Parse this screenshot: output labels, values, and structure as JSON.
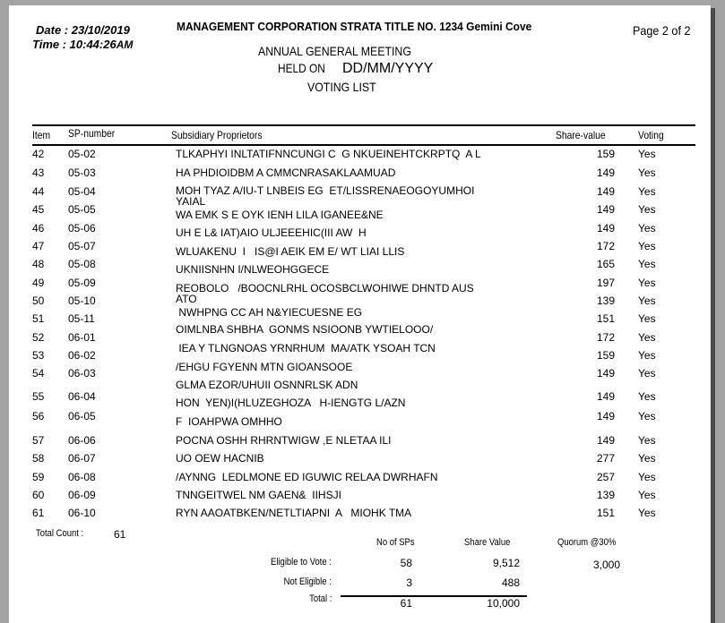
{
  "header": {
    "date_label": "Date : 23/10/2019",
    "time_label": "Time : 10:44:26",
    "time_suffix": "AM",
    "corp_title": "MANAGEMENT CORPORATION STRATA TITLE NO. 1234 Gemini Cove",
    "page_info": "Page 2 of 2",
    "meeting": "ANNUAL GENERAL MEETING",
    "held_on": "HELD ON",
    "held_date": "DD/MM/YYYY",
    "list_title": "VOTING LIST"
  },
  "table": {
    "columns": [
      "Item",
      "SP-number",
      "Subsidiary Proprietors",
      "Share-value",
      "Voting"
    ],
    "rows": [
      {
        "item": "42",
        "sp": "05-02",
        "name": "TLKAPHYI INLTATIFNNCUNGI C  G NKUEINEHTCKRPTQ  A L",
        "share": "159",
        "voting": "Yes"
      },
      {
        "item": "43",
        "sp": "05-03",
        "name": "HA PHDIOIDBM A CMMCNRASAKLAAMUAD",
        "share": "149",
        "voting": "Yes"
      },
      {
        "item": "44",
        "sp": "05-04",
        "name": "MOH TYAZ A/IU-T LNBEIS EG  ET/LISSRENAEOGOYUMHOI",
        "name2": "YAIAL",
        "share": "149",
        "voting": "Yes"
      },
      {
        "item": "45",
        "sp": "05-05",
        "name": "WA EMK S E OYK IENH LILA IGANEE&NE",
        "share": "149",
        "voting": "Yes"
      },
      {
        "item": "46",
        "sp": "05-06",
        "name": "UH E L& IAT)AIO ULJEEEHIC(III AW  H",
        "share": "149",
        "voting": "Yes"
      },
      {
        "item": "47",
        "sp": "05-07",
        "name": "WLUAKENU  I   IS@I AEIK EM E/ WT LIAI LLIS",
        "share": "172",
        "voting": "Yes"
      },
      {
        "item": "48",
        "sp": "05-08",
        "name": "UKNIISNHN I/NLWEOHGGECE",
        "share": "165",
        "voting": "Yes"
      },
      {
        "item": "49",
        "sp": "05-09",
        "name": "REOBOLO   /BOOCNLRHL OCOSBCLWOHIWE DHNTD AUS",
        "name2": "ATO",
        "share": "197",
        "voting": "Yes"
      },
      {
        "item": "50",
        "sp": "05-10",
        "name": " NWHPNG CC AH N&YIECUESNE EG",
        "share": "139",
        "voting": "Yes"
      },
      {
        "item": "51",
        "sp": "05-11",
        "name": "OIMLNBA SHBHA  GONMS NSIOONB YWTIELOOO/",
        "share": "151",
        "voting": "Yes"
      },
      {
        "item": "52",
        "sp": "06-01",
        "name": " IEA Y TLNGNOAS YRNRHUM  MA/ATK YSOAH TCN",
        "share": "172",
        "voting": "Yes"
      },
      {
        "item": "53",
        "sp": "06-02",
        "name": "/EHGU FGYENN MTN GIOANSOOE",
        "share": "159",
        "voting": "Yes"
      },
      {
        "item": "54",
        "sp": "06-03",
        "name": "GLMA EZOR/UHUII OSNNRLSK ADN",
        "share": "149",
        "voting": "Yes"
      },
      {
        "item": "55",
        "sp": "06-04",
        "name": "HON  YEN)I(HLUZEGHOZA   H-IENGTG L/AZN",
        "share": "149",
        "voting": "Yes"
      },
      {
        "item": "56",
        "sp": "06-05",
        "name": "F  IOAHPWA OMHHO",
        "share": "149",
        "voting": "Yes"
      },
      {
        "item": "57",
        "sp": "06-06",
        "name": "POCNA OSHH RHRNTWIGW ,E NLETAA ILI",
        "share": "149",
        "voting": "Yes"
      },
      {
        "item": "58",
        "sp": "06-07",
        "name": "UO OEW HACNIB",
        "share": "277",
        "voting": "Yes"
      },
      {
        "item": "59",
        "sp": "06-08",
        "name": "/AYNNG  LEDLMONE ED IGUWIC RELAA DWRHAFN",
        "share": "257",
        "voting": "Yes"
      },
      {
        "item": "60",
        "sp": "06-09",
        "name": "TNNGEITWEL NM GAEN&  IIHSJI",
        "share": "139",
        "voting": "Yes"
      },
      {
        "item": "61",
        "sp": "06-10",
        "name": "RYN AAOATBKEN/NETLTIAPNI  A   MIOHK TMA",
        "share": "151",
        "voting": "Yes"
      }
    ]
  },
  "summary": {
    "total_count_label": "Total Count :",
    "total_count": "61",
    "col_sps": "No of SPs",
    "col_share": "Share Value",
    "col_quorum": "Quorum @30%",
    "eligible_label": "Eligible to Vote :",
    "eligible_sps": "58",
    "eligible_share": "9,512",
    "quorum": "3,000",
    "not_eligible_label": "Not Eligible :",
    "not_eligible_sps": "3",
    "not_eligible_share": "488",
    "total_label": "Total :",
    "total_sps": "61",
    "total_share": "10,000"
  }
}
